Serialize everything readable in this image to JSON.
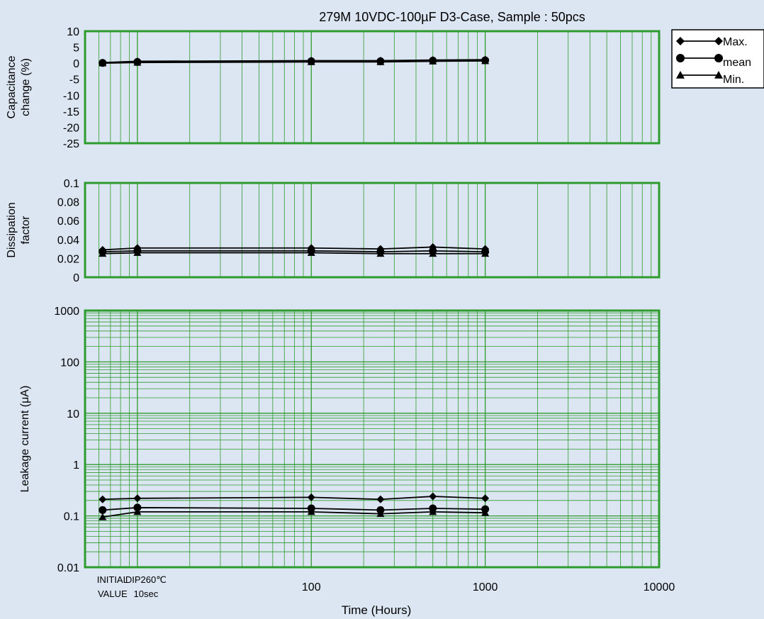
{
  "chart_data": [
    {
      "type": "line",
      "title": "279M 10VDC-100µF D3-Case, Sample : 50pcs",
      "ylabel": [
        "Capacitance",
        "change (%)"
      ],
      "ylim": [
        -25,
        10
      ],
      "yticks": [
        "10",
        "5",
        "0",
        "-5",
        "-10",
        "-15",
        "-20",
        "-25"
      ],
      "x_positions": [
        "INITIAL VALUE",
        "DIP260℃ 10sec",
        100,
        250,
        500,
        1000
      ],
      "series": [
        {
          "name": "Max.",
          "marker": "diamond",
          "values": [
            0.2,
            0.6,
            0.8,
            0.8,
            1.0,
            1.1
          ]
        },
        {
          "name": "mean",
          "marker": "circle",
          "values": [
            0.1,
            0.4,
            0.6,
            0.6,
            0.8,
            0.9
          ]
        },
        {
          "name": "Min.",
          "marker": "triangle",
          "values": [
            0.0,
            0.2,
            0.4,
            0.4,
            0.6,
            0.7
          ]
        }
      ]
    },
    {
      "type": "line",
      "ylabel": [
        "Dissipation",
        "factor"
      ],
      "ylim": [
        0,
        0.1
      ],
      "yticks": [
        "0.1",
        "0.08",
        "0.06",
        "0.04",
        "0.02",
        "0"
      ],
      "x_positions": [
        "INITIAL VALUE",
        "DIP260℃ 10sec",
        100,
        250,
        500,
        1000
      ],
      "series": [
        {
          "name": "Max.",
          "marker": "diamond",
          "values": [
            0.029,
            0.031,
            0.031,
            0.03,
            0.032,
            0.03
          ]
        },
        {
          "name": "mean",
          "marker": "circle",
          "values": [
            0.027,
            0.028,
            0.028,
            0.027,
            0.028,
            0.027
          ]
        },
        {
          "name": "Min.",
          "marker": "triangle",
          "values": [
            0.025,
            0.026,
            0.026,
            0.025,
            0.025,
            0.025
          ]
        }
      ]
    },
    {
      "type": "line",
      "ylabel": "Leakage current (μA)",
      "yscale": "log",
      "ylim": [
        0.01,
        1000
      ],
      "yticks": [
        "1000",
        "100",
        "10",
        "1",
        "0.1",
        "0.01"
      ],
      "x_positions": [
        "INITIAL VALUE",
        "DIP260℃ 10sec",
        100,
        250,
        500,
        1000
      ],
      "series": [
        {
          "name": "Max.",
          "marker": "diamond",
          "values": [
            0.21,
            0.22,
            0.23,
            0.21,
            0.24,
            0.22
          ]
        },
        {
          "name": "mean",
          "marker": "circle",
          "values": [
            0.13,
            0.145,
            0.14,
            0.13,
            0.14,
            0.135
          ]
        },
        {
          "name": "Min.",
          "marker": "triangle",
          "values": [
            0.095,
            0.12,
            0.12,
            0.11,
            0.12,
            0.115
          ]
        }
      ]
    }
  ],
  "x_axis": {
    "label": "Time (Hours)",
    "scale": "log",
    "tick_labels": [
      {
        "lines": [
          "INITIAL",
          "VALUE"
        ]
      },
      {
        "lines": [
          "DIP260℃",
          "10sec"
        ]
      },
      {
        "lines": [
          "100"
        ]
      },
      {
        "lines": [
          "1000"
        ]
      },
      {
        "lines": [
          "10000"
        ]
      }
    ]
  },
  "legend": {
    "placement": "top-right",
    "items": [
      {
        "label": "Max.",
        "marker": "diamond"
      },
      {
        "label": "mean",
        "marker": "circle"
      },
      {
        "label": "Min.",
        "marker": "triangle"
      }
    ]
  },
  "colors": {
    "background": "#dce6f2",
    "frame": "#2e9b2e",
    "grid": "#2e9b2e",
    "series": "#000000"
  }
}
